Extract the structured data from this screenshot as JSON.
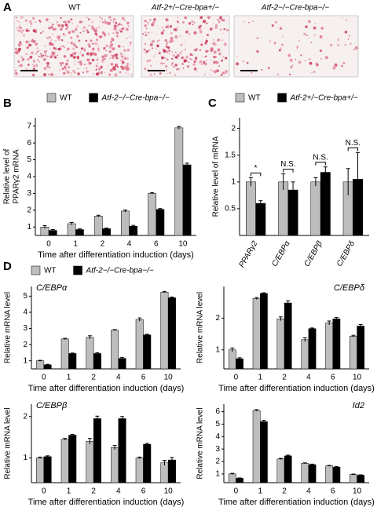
{
  "panels": [
    "A",
    "B",
    "C",
    "D"
  ],
  "images": [
    {
      "label": "WT"
    },
    {
      "label": "Atf-2+/−Cre-bpa+/−"
    },
    {
      "label": "Atf-2−/−Cre-bpa−/−"
    }
  ],
  "chart_data": [
    {
      "type": "bar",
      "ylabel": [
        "Relative level of",
        "PPARγ2 mRNA"
      ],
      "xlabel": "Time after differentiation induction (days)",
      "categories": [
        "0",
        "1",
        "2",
        "4",
        "6",
        "10"
      ],
      "ylim": [
        0.5,
        7.5
      ],
      "yticks": [
        1,
        2,
        3,
        4,
        5,
        6,
        7
      ],
      "series": [
        {
          "name": "WT",
          "color": "#bdbdbd",
          "values": [
            1.0,
            1.2,
            1.65,
            1.95,
            3.0,
            6.9
          ],
          "errors": [
            0.08,
            0.07,
            0.05,
            0.06,
            0.04,
            0.08
          ]
        },
        {
          "name": "Atf-2−/−Cre-bpa−/−",
          "color": "#000000",
          "values": [
            0.8,
            0.85,
            0.9,
            1.05,
            2.05,
            4.7
          ],
          "errors": [
            0.05,
            0.04,
            0.04,
            0.05,
            0.05,
            0.1
          ]
        }
      ]
    },
    {
      "type": "bar",
      "ylabel": [
        "Relative level of mRNA"
      ],
      "categories": [
        "PPARγ2",
        "C/EBPα",
        "C/EBPβ",
        "C/EBPδ"
      ],
      "ylim": [
        0,
        2.2
      ],
      "yticks": [
        0.5,
        1,
        1.5,
        2
      ],
      "annotations": [
        "*",
        "N.S.",
        "N.S.",
        "N.S."
      ],
      "series": [
        {
          "name": "WT",
          "color": "#bdbdbd",
          "values": [
            1.0,
            1.0,
            1.0,
            1.0
          ],
          "errors": [
            0.08,
            0.15,
            0.08,
            0.25
          ]
        },
        {
          "name": "Atf-2+/−Cre-bpa+/−",
          "color": "#000000",
          "values": [
            0.6,
            0.85,
            1.18,
            1.05
          ],
          "errors": [
            0.05,
            0.15,
            0.1,
            0.5
          ]
        }
      ]
    },
    {
      "type": "bar",
      "title": "C/EBPα",
      "ylabel": [
        "Relative mRNA level"
      ],
      "xlabel": "Time after differentiation induction (days)",
      "categories": [
        "0",
        "1",
        "2",
        "4",
        "6",
        "10"
      ],
      "ylim": [
        0.5,
        5.6
      ],
      "yticks": [
        1,
        2,
        3,
        4,
        5
      ],
      "series": [
        {
          "name": "WT",
          "color": "#bdbdbd",
          "values": [
            1.0,
            2.35,
            2.45,
            2.9,
            3.55,
            5.25
          ],
          "errors": [
            0.03,
            0.04,
            0.1,
            0.03,
            0.1,
            0.04
          ]
        },
        {
          "name": "Atf-2−/−Cre-bpa−/−",
          "color": "#000000",
          "values": [
            0.75,
            1.45,
            1.45,
            1.15,
            2.6,
            4.9
          ],
          "errors": [
            0.03,
            0.03,
            0.05,
            0.06,
            0.04,
            0.05
          ]
        }
      ]
    },
    {
      "type": "bar",
      "title": "C/EBPδ",
      "ylabel": [
        "Relative mRNA level"
      ],
      "xlabel": "Time after differentiation induction (days)",
      "categories": [
        "0",
        "1",
        "2",
        "4",
        "6",
        "10"
      ],
      "ylim": [
        0.4,
        3.0
      ],
      "yticks": [
        1,
        2
      ],
      "series": [
        {
          "color": "#bdbdbd",
          "values": [
            1.0,
            2.62,
            1.98,
            1.32,
            1.85,
            1.43
          ],
          "errors": [
            0.06,
            0.03,
            0.06,
            0.06,
            0.06,
            0.03
          ]
        },
        {
          "color": "#000000",
          "values": [
            0.72,
            2.78,
            2.48,
            1.67,
            1.98,
            1.75
          ],
          "errors": [
            0.03,
            0.02,
            0.07,
            0.02,
            0.04,
            0.05
          ]
        }
      ]
    },
    {
      "type": "bar",
      "title": "C/EBPβ",
      "ylabel": [
        "Relative mRNA level"
      ],
      "xlabel": "Time after differentiation induction (days)",
      "categories": [
        "0",
        "1",
        "2",
        "4",
        "6",
        "10"
      ],
      "ylim": [
        0.4,
        2.3
      ],
      "yticks": [
        1,
        2
      ],
      "series": [
        {
          "color": "#bdbdbd",
          "values": [
            1.0,
            1.45,
            1.4,
            1.25,
            1.0,
            0.88
          ],
          "errors": [
            0.02,
            0.02,
            0.07,
            0.05,
            0.02,
            0.06
          ]
        },
        {
          "color": "#000000",
          "values": [
            1.03,
            1.55,
            1.95,
            1.95,
            1.33,
            0.95
          ],
          "errors": [
            0.02,
            0.02,
            0.06,
            0.05,
            0.02,
            0.06
          ]
        }
      ]
    },
    {
      "type": "bar",
      "title": "Id2",
      "ylabel": [
        "Relative mRNA level"
      ],
      "xlabel": "Time after differentiation induction (days)",
      "categories": [
        "0",
        "1",
        "2",
        "4",
        "6",
        "10"
      ],
      "ylim": [
        0.3,
        6.6
      ],
      "yticks": [
        1,
        2,
        3,
        4,
        5,
        6
      ],
      "series": [
        {
          "color": "#bdbdbd",
          "values": [
            1.0,
            6.1,
            2.2,
            1.85,
            1.65,
            0.95
          ],
          "errors": [
            0.05,
            0.06,
            0.05,
            0.04,
            0.04,
            0.04
          ]
        },
        {
          "color": "#000000",
          "values": [
            0.65,
            5.2,
            2.45,
            1.75,
            1.55,
            0.9
          ],
          "errors": [
            0.03,
            0.1,
            0.06,
            0.04,
            0.04,
            0.03
          ]
        }
      ]
    }
  ]
}
